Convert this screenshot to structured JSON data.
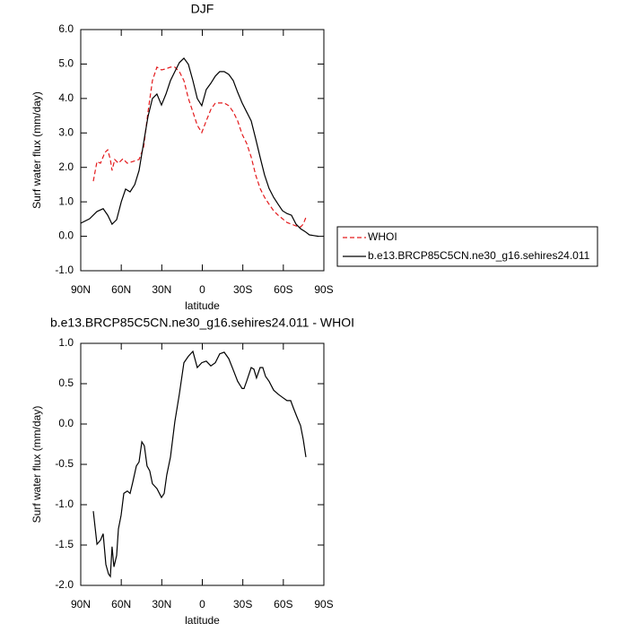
{
  "chart_data": [
    {
      "type": "line",
      "title": "DJF",
      "xlabel": "latitude",
      "ylabel": "Surf water flux (mm/day)",
      "xlim": [
        90,
        -90
      ],
      "xticks": [
        {
          "value": 90,
          "label": "90N"
        },
        {
          "value": 60,
          "label": "60N"
        },
        {
          "value": 30,
          "label": "30N"
        },
        0,
        {
          "value": -30,
          "label": "30S"
        },
        {
          "value": -60,
          "label": "60S"
        },
        {
          "value": -90,
          "label": "90S"
        }
      ],
      "ylim": [
        -1,
        6
      ],
      "yticks": [
        {
          "value": 6,
          "label": "6.0"
        },
        {
          "value": 5,
          "label": "5.0"
        },
        {
          "value": 4,
          "label": "4.0"
        },
        {
          "value": 3,
          "label": "3.0"
        },
        {
          "value": 2,
          "label": "2.0"
        },
        {
          "value": 1,
          "label": "1.0"
        },
        {
          "value": 0,
          "label": "0.0"
        },
        {
          "value": -1,
          "label": "-1.0"
        }
      ],
      "series": [
        {
          "name": "WHOI",
          "color": "#e31a1c",
          "dashed": true,
          "x": [
            80.7,
            78.0,
            75.4,
            72.1,
            70.1,
            68.1,
            66.8,
            64.8,
            62.1,
            58.8,
            55.5,
            51.5,
            46.8,
            43.5,
            40.2,
            36.9,
            33.6,
            30.2,
            26.9,
            23.6,
            20.3,
            17.0,
            13.6,
            10.3,
            7.0,
            3.7,
            0.4,
            -2.9,
            -6.3,
            -9.6,
            -12.9,
            -16.2,
            -19.6,
            -22.9,
            -26.2,
            -29.5,
            -32.8,
            -36.2,
            -39.5,
            -42.8,
            -46.1,
            -49.4,
            -52.8,
            -56.1,
            -59.4,
            -62.7,
            -66.0,
            -69.4,
            -72.7,
            -74.7,
            -76.7
          ],
          "values": [
            1.6,
            2.17,
            2.12,
            2.43,
            2.51,
            2.23,
            1.91,
            2.23,
            2.12,
            2.25,
            2.12,
            2.17,
            2.23,
            2.57,
            3.61,
            4.52,
            4.91,
            4.83,
            4.86,
            4.91,
            4.91,
            4.78,
            4.52,
            4.0,
            3.61,
            3.22,
            3.01,
            3.35,
            3.68,
            3.87,
            3.87,
            3.87,
            3.79,
            3.61,
            3.35,
            2.96,
            2.7,
            2.3,
            1.78,
            1.39,
            1.13,
            0.93,
            0.74,
            0.61,
            0.51,
            0.4,
            0.35,
            0.3,
            0.27,
            0.35,
            0.55
          ]
        },
        {
          "name": "b.e13.BRCP85C5CN.ne30_g16.sehires24.011",
          "color": "#000000",
          "dashed": false,
          "x": [
            90,
            83.4,
            78,
            73.4,
            70,
            66.8,
            63.4,
            60,
            56.8,
            53.5,
            50,
            46.8,
            43.5,
            40.2,
            36.9,
            33.6,
            30.2,
            26.9,
            23.6,
            20.3,
            17,
            13.6,
            10.3,
            7,
            3.7,
            0.4,
            -2.9,
            -6.3,
            -9.6,
            -12.9,
            -16.2,
            -19.6,
            -22.9,
            -26.2,
            -29.5,
            -32.8,
            -36.2,
            -39.5,
            -42.8,
            -46.1,
            -49.4,
            -52.8,
            -56.1,
            -59.4,
            -62.7,
            -66,
            -69.4,
            -72.7,
            -76,
            -79.3,
            -82.6,
            -86
          ],
          "values": [
            0.38,
            0.51,
            0.72,
            0.8,
            0.61,
            0.35,
            0.48,
            1.0,
            1.37,
            1.29,
            1.5,
            1.91,
            2.7,
            3.48,
            4.0,
            4.13,
            3.81,
            4.13,
            4.52,
            4.78,
            5.04,
            5.17,
            4.99,
            4.52,
            4.0,
            3.79,
            4.26,
            4.44,
            4.65,
            4.78,
            4.78,
            4.7,
            4.52,
            4.18,
            3.87,
            3.61,
            3.35,
            2.83,
            2.3,
            1.78,
            1.39,
            1.13,
            0.93,
            0.74,
            0.66,
            0.61,
            0.35,
            0.22,
            0.14,
            0.04,
            0.02,
            0.0
          ]
        }
      ]
    },
    {
      "type": "line",
      "title": "b.e13.BRCP85C5CN.ne30_g16.sehires24.011 - WHOI",
      "xlabel": "latitude",
      "ylabel": "Surf water flux (mm/day)",
      "xlim": [
        90,
        -90
      ],
      "xticks": [
        {
          "value": 90,
          "label": "90N"
        },
        {
          "value": 60,
          "label": "60N"
        },
        {
          "value": 30,
          "label": "30N"
        },
        0,
        {
          "value": -30,
          "label": "30S"
        },
        {
          "value": -60,
          "label": "60S"
        },
        {
          "value": -90,
          "label": "90S"
        }
      ],
      "ylim": [
        -2,
        1
      ],
      "yticks": [
        {
          "value": 1,
          "label": "1.0"
        },
        0.5,
        {
          "value": 0,
          "label": "0.0"
        },
        -0.5,
        {
          "value": -1,
          "label": "-1.0"
        },
        -1.5,
        {
          "value": -2,
          "label": "-2.0"
        }
      ],
      "series": [
        {
          "color": "#000000",
          "dashed": false,
          "x": [
            80.7,
            78.0,
            75.4,
            73.4,
            71.4,
            69.4,
            68.1,
            66.8,
            65.4,
            63.4,
            62.1,
            60.1,
            58.1,
            55.5,
            53.5,
            51.5,
            48.8,
            46.8,
            44.8,
            42.9,
            40.9,
            38.9,
            36.9,
            33.6,
            30.2,
            28.2,
            26.3,
            23.6,
            20.3,
            17.0,
            13.6,
            10.3,
            7.0,
            3.7,
            0.4,
            -2.9,
            -6.3,
            -9.6,
            -12.9,
            -16.2,
            -19.6,
            -22.9,
            -26.2,
            -29.5,
            -30.9,
            -32.8,
            -36.2,
            -38.2,
            -40.1,
            -42.8,
            -44.8,
            -46.8,
            -49.4,
            -52.8,
            -56.1,
            -59.4,
            -62.7,
            -65.4,
            -67.4,
            -70.0,
            -72.7,
            -74.7,
            -76.7
          ],
          "values": [
            -1.08,
            -1.49,
            -1.44,
            -1.36,
            -1.74,
            -1.86,
            -1.89,
            -1.52,
            -1.77,
            -1.63,
            -1.3,
            -1.13,
            -0.86,
            -0.83,
            -0.86,
            -0.72,
            -0.52,
            -0.47,
            -0.22,
            -0.27,
            -0.52,
            -0.58,
            -0.74,
            -0.8,
            -0.91,
            -0.86,
            -0.63,
            -0.41,
            0.03,
            0.37,
            0.76,
            0.84,
            0.9,
            0.7,
            0.76,
            0.78,
            0.72,
            0.76,
            0.87,
            0.89,
            0.81,
            0.67,
            0.53,
            0.44,
            0.44,
            0.53,
            0.7,
            0.68,
            0.57,
            0.7,
            0.7,
            0.59,
            0.53,
            0.42,
            0.37,
            0.33,
            0.29,
            0.29,
            0.2,
            0.09,
            -0.02,
            -0.19,
            -0.41
          ]
        }
      ]
    }
  ]
}
